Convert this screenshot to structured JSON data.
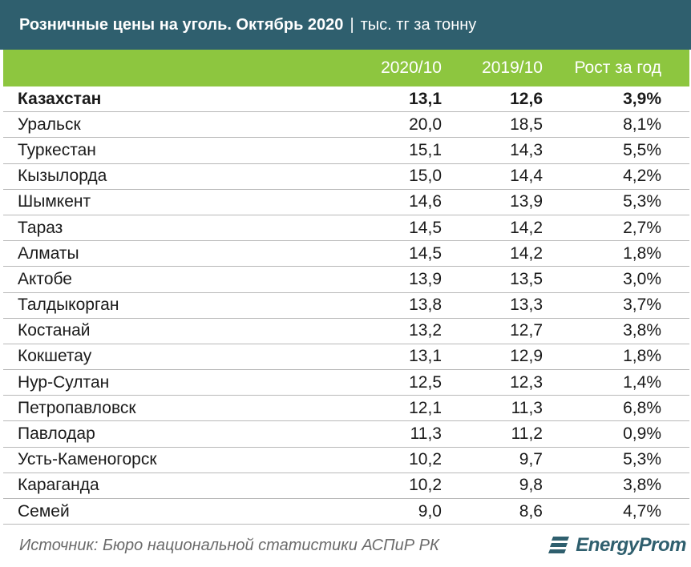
{
  "header": {
    "title": "Розничные цены на уголь. Октябрь 2020",
    "separator": "|",
    "unit": "тыс. тг за тонну"
  },
  "colors": {
    "title_bg": "#2f5f6e",
    "header_bg": "#8dc63f",
    "logo": "#2f5f6e"
  },
  "table": {
    "columns": [
      "",
      "2020/10",
      "2019/10",
      "Рост за год"
    ],
    "rows": [
      {
        "name": "Казахстан",
        "v2020": "13,1",
        "v2019": "12,6",
        "growth": "3,9%",
        "bold": true
      },
      {
        "name": "Уральск",
        "v2020": "20,0",
        "v2019": "18,5",
        "growth": "8,1%"
      },
      {
        "name": "Туркестан",
        "v2020": "15,1",
        "v2019": "14,3",
        "growth": "5,5%"
      },
      {
        "name": "Кызылорда",
        "v2020": "15,0",
        "v2019": "14,4",
        "growth": "4,2%"
      },
      {
        "name": "Шымкент",
        "v2020": "14,6",
        "v2019": "13,9",
        "growth": "5,3%"
      },
      {
        "name": "Тараз",
        "v2020": "14,5",
        "v2019": "14,2",
        "growth": "2,7%"
      },
      {
        "name": "Алматы",
        "v2020": "14,5",
        "v2019": "14,2",
        "growth": "1,8%"
      },
      {
        "name": "Актобе",
        "v2020": "13,9",
        "v2019": "13,5",
        "growth": "3,0%"
      },
      {
        "name": "Талдыкорган",
        "v2020": "13,8",
        "v2019": "13,3",
        "growth": "3,7%"
      },
      {
        "name": "Костанай",
        "v2020": "13,2",
        "v2019": "12,7",
        "growth": "3,8%"
      },
      {
        "name": "Кокшетау",
        "v2020": "13,1",
        "v2019": "12,9",
        "growth": "1,8%"
      },
      {
        "name": "Нур-Султан",
        "v2020": "12,5",
        "v2019": "12,3",
        "growth": "1,4%"
      },
      {
        "name": "Петропавловск",
        "v2020": "12,1",
        "v2019": "11,3",
        "growth": "6,8%"
      },
      {
        "name": "Павлодар",
        "v2020": "11,3",
        "v2019": "11,2",
        "growth": "0,9%"
      },
      {
        "name": "Усть-Каменогорск",
        "v2020": "10,2",
        "v2019": "9,7",
        "growth": "5,3%"
      },
      {
        "name": "Караганда",
        "v2020": "10,2",
        "v2019": "9,8",
        "growth": "3,8%"
      },
      {
        "name": "Семей",
        "v2020": "9,0",
        "v2019": "8,6",
        "growth": "4,7%"
      }
    ]
  },
  "footer": {
    "source": "Источник: Бюро национальной статистики АСПиР РК",
    "logo_text": "EnergyProm",
    "logo_icon": "energyprom-logo-icon"
  },
  "chart_data": {
    "type": "table",
    "title": "Розничные цены на уголь. Октябрь 2020",
    "subtitle": "тыс. тг за тонну",
    "columns": [
      "2020/10",
      "2019/10",
      "Рост за год"
    ],
    "categories": [
      "Казахстан",
      "Уральск",
      "Туркестан",
      "Кызылорда",
      "Шымкент",
      "Тараз",
      "Алматы",
      "Актобе",
      "Талдыкорган",
      "Костанай",
      "Кокшетау",
      "Нур-Султан",
      "Петропавловск",
      "Павлодар",
      "Усть-Каменогорск",
      "Караганда",
      "Семей"
    ],
    "series": [
      {
        "name": "2020/10",
        "values": [
          13.1,
          20.0,
          15.1,
          15.0,
          14.6,
          14.5,
          14.5,
          13.9,
          13.8,
          13.2,
          13.1,
          12.5,
          12.1,
          11.3,
          10.2,
          10.2,
          9.0
        ]
      },
      {
        "name": "2019/10",
        "values": [
          12.6,
          18.5,
          14.3,
          14.4,
          13.9,
          14.2,
          14.2,
          13.5,
          13.3,
          12.7,
          12.9,
          12.3,
          11.3,
          11.2,
          9.7,
          9.8,
          8.6
        ]
      },
      {
        "name": "Рост за год",
        "values": [
          3.9,
          8.1,
          5.5,
          4.2,
          5.3,
          2.7,
          1.8,
          3.0,
          3.7,
          3.8,
          1.8,
          1.4,
          6.8,
          0.9,
          5.3,
          3.8,
          4.7
        ]
      }
    ]
  }
}
